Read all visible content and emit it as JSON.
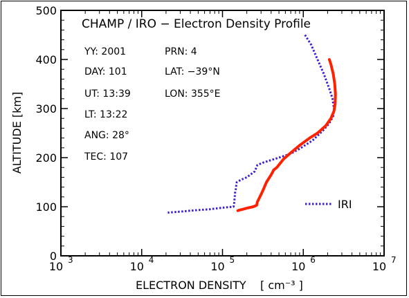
{
  "chart_data": {
    "type": "line",
    "title": "CHAMP / IRO − Electron Density Profile",
    "xlabel": "ELECTRON DENSITY",
    "xlabel_unit": "[ cm⁻³ ]",
    "ylabel": "ALTITUDE  [km]",
    "x_scale": "log",
    "xlim": [
      1000,
      10000000
    ],
    "ylim": [
      0,
      500
    ],
    "x_ticks": [
      {
        "base": "10",
        "exp": "3",
        "value": 1000
      },
      {
        "base": "10",
        "exp": "4",
        "value": 10000
      },
      {
        "base": "10",
        "exp": "5",
        "value": 100000
      },
      {
        "base": "10",
        "exp": "6",
        "value": 1000000
      },
      {
        "base": "10",
        "exp": "7",
        "value": 10000000
      }
    ],
    "y_ticks": [
      {
        "label": "0",
        "value": 0
      },
      {
        "label": "100",
        "value": 100
      },
      {
        "label": "200",
        "value": 200
      },
      {
        "label": "300",
        "value": 300
      },
      {
        "label": "400",
        "value": 400
      },
      {
        "label": "500",
        "value": 500
      }
    ],
    "grid": false,
    "info_left": [
      "YY: 2001",
      "DAY: 101",
      "UT: 13:39",
      "LT: 13:22",
      "ANG: 28°",
      "TEC: 107"
    ],
    "info_right": [
      "PRN: 4",
      "LAT: −39°N",
      "LON: 355°E"
    ],
    "legend": {
      "label": "IRI",
      "placement": "lower-right"
    },
    "series": [
      {
        "name": "IRI",
        "color": "#3b1fcf",
        "style": "dotted",
        "points": [
          [
            1050000,
            450
          ],
          [
            1250000,
            430
          ],
          [
            1500000,
            400
          ],
          [
            1800000,
            370
          ],
          [
            2100000,
            340
          ],
          [
            2300000,
            320
          ],
          [
            2400000,
            300
          ],
          [
            2350000,
            285
          ],
          [
            2100000,
            270
          ],
          [
            1750000,
            255
          ],
          [
            1300000,
            235
          ],
          [
            900000,
            218
          ],
          [
            700000,
            208
          ],
          [
            500000,
            200
          ],
          [
            320000,
            190
          ],
          [
            270000,
            185
          ],
          [
            260000,
            178
          ],
          [
            250000,
            172
          ],
          [
            220000,
            165
          ],
          [
            200000,
            160
          ],
          [
            170000,
            155
          ],
          [
            150000,
            150
          ],
          [
            148000,
            145
          ],
          [
            147000,
            138
          ],
          [
            145000,
            132
          ],
          [
            143000,
            128
          ],
          [
            142000,
            122
          ],
          [
            141000,
            116
          ],
          [
            140000,
            110
          ],
          [
            139000,
            105
          ],
          [
            137000,
            100
          ],
          [
            100000,
            98
          ],
          [
            70000,
            95
          ],
          [
            40000,
            92
          ],
          [
            30000,
            90
          ],
          [
            21000,
            88
          ]
        ]
      },
      {
        "name": "",
        "color": "#ff2200",
        "style": "solid",
        "points": [
          [
            2100000,
            400
          ],
          [
            2200000,
            390
          ],
          [
            2350000,
            370
          ],
          [
            2450000,
            350
          ],
          [
            2500000,
            330
          ],
          [
            2480000,
            310
          ],
          [
            2400000,
            295
          ],
          [
            2200000,
            280
          ],
          [
            1900000,
            265
          ],
          [
            1500000,
            250
          ],
          [
            1200000,
            240
          ],
          [
            900000,
            225
          ],
          [
            700000,
            210
          ],
          [
            570000,
            197
          ],
          [
            470000,
            180
          ],
          [
            430000,
            175
          ],
          [
            400000,
            165
          ],
          [
            350000,
            150
          ],
          [
            320000,
            135
          ],
          [
            300000,
            125
          ],
          [
            280000,
            115
          ],
          [
            270000,
            110
          ],
          [
            265000,
            103
          ],
          [
            240000,
            100
          ],
          [
            200000,
            97
          ],
          [
            180000,
            95
          ],
          [
            160000,
            93
          ],
          [
            155000,
            92
          ]
        ]
      }
    ]
  }
}
